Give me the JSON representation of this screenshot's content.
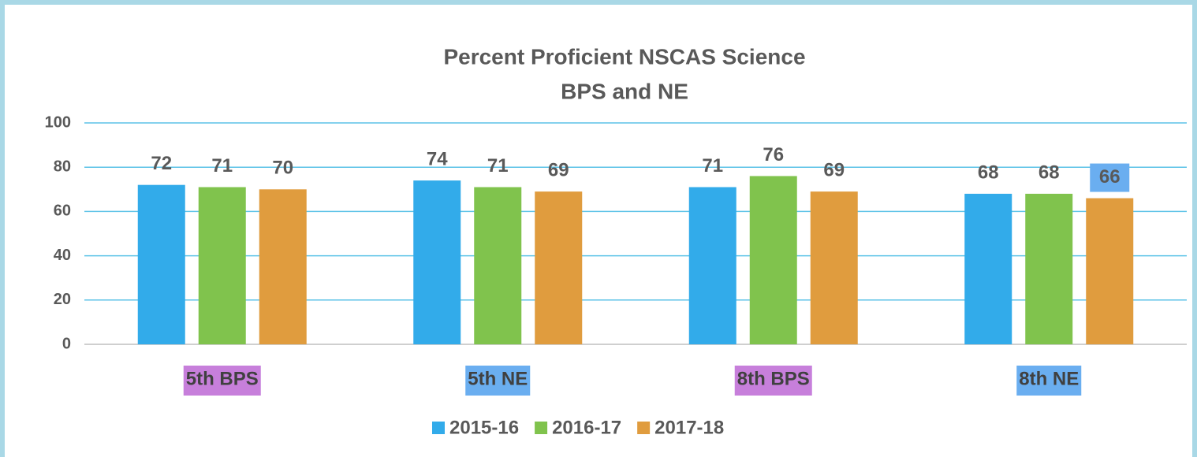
{
  "chart_data": {
    "type": "bar",
    "title": "Percent Proficient NSCAS Science",
    "subtitle": "BPS and NE",
    "categories": [
      "5th BPS",
      "5th NE",
      "8th BPS",
      "8th NE"
    ],
    "category_colors": [
      "#c77fdb",
      "#6aaef0",
      "#c77fdb",
      "#6aaef0"
    ],
    "series": [
      {
        "name": "2015-16",
        "color": "#32abea",
        "values": [
          72,
          74,
          71,
          68
        ]
      },
      {
        "name": "2016-17",
        "color": "#80c34d",
        "values": [
          71,
          71,
          76,
          68
        ]
      },
      {
        "name": "2017-18",
        "color": "#e09c3e",
        "values": [
          70,
          69,
          69,
          66
        ]
      }
    ],
    "ylim": [
      0,
      100
    ],
    "yticks": [
      0,
      20,
      40,
      60,
      80,
      100
    ],
    "grid": true,
    "legend": "bottom"
  }
}
